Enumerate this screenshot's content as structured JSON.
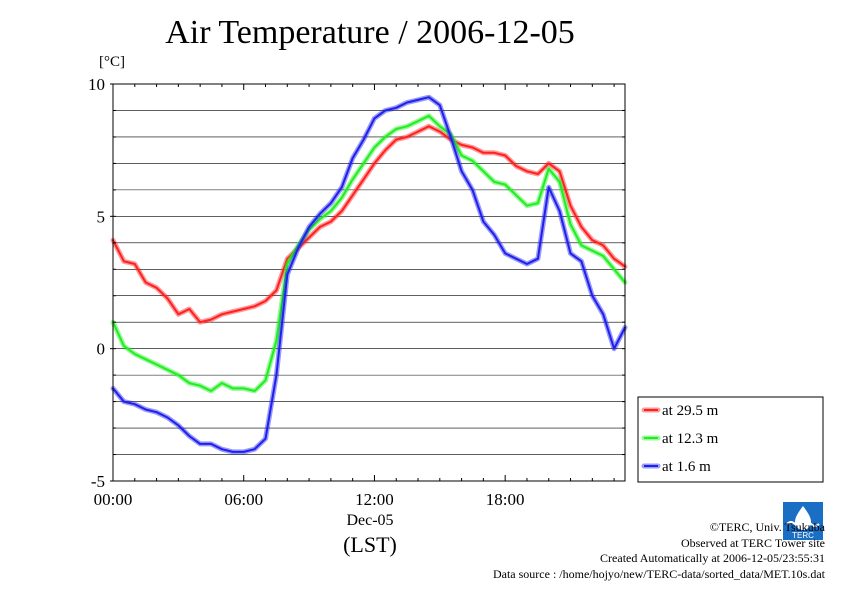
{
  "title": "Air Temperature / 2006-12-05",
  "footer": {
    "copyright": "©TERC, Univ. Tsukuba",
    "observed": "Observed at TERC Tower site",
    "created": "Created Automatically at 2006-12-05/23:55:31",
    "source": "Data source : /home/hojyo/new/TERC-data/sorted_data/MET.10s.dat"
  },
  "logo": {
    "text": "TERC",
    "color": "#1a6fc4"
  },
  "chart_data": {
    "type": "line",
    "title": "Air Temperature / 2006-12-05",
    "ylabel": "[°C]",
    "xlabel_date": "Dec-05",
    "xlabel_unit": "(LST)",
    "ylim": [
      -5,
      10
    ],
    "xlim": [
      0,
      23.5
    ],
    "yticks": [
      -5,
      0,
      5,
      10
    ],
    "xticks": [
      {
        "t": 0,
        "label": "00:00"
      },
      {
        "t": 6,
        "label": "06:00"
      },
      {
        "t": 12,
        "label": "12:00"
      },
      {
        "t": 18,
        "label": "18:00"
      }
    ],
    "grid": true,
    "legend_position": "right",
    "x_hours": [
      0,
      0.5,
      1,
      1.5,
      2,
      2.5,
      3,
      3.5,
      4,
      4.5,
      5,
      5.5,
      6,
      6.5,
      7,
      7.5,
      8,
      8.5,
      9,
      9.5,
      10,
      10.5,
      11,
      11.5,
      12,
      12.5,
      13,
      13.5,
      14,
      14.5,
      15,
      15.5,
      16,
      16.5,
      17,
      17.5,
      18,
      18.5,
      19,
      19.5,
      20,
      20.5,
      21,
      21.5,
      22,
      22.5,
      23,
      23.5
    ],
    "series": [
      {
        "name": "at 29.5 m",
        "color": "#ff2020",
        "values": [
          4.1,
          3.3,
          3.2,
          2.5,
          2.3,
          1.9,
          1.3,
          1.5,
          1.0,
          1.1,
          1.3,
          1.4,
          1.5,
          1.6,
          1.8,
          2.2,
          3.4,
          3.8,
          4.2,
          4.6,
          4.8,
          5.2,
          5.8,
          6.4,
          7.0,
          7.5,
          7.9,
          8.0,
          8.2,
          8.4,
          8.2,
          7.9,
          7.7,
          7.6,
          7.4,
          7.4,
          7.3,
          6.9,
          6.7,
          6.6,
          7.0,
          6.7,
          5.4,
          4.6,
          4.1,
          3.9,
          3.4,
          3.1
        ]
      },
      {
        "name": "at 12.3 m",
        "color": "#20ee20",
        "values": [
          1.0,
          0.1,
          -0.2,
          -0.4,
          -0.6,
          -0.8,
          -1.0,
          -1.3,
          -1.4,
          -1.6,
          -1.3,
          -1.5,
          -1.5,
          -1.6,
          -1.2,
          0.3,
          3.2,
          3.9,
          4.5,
          4.9,
          5.2,
          5.7,
          6.4,
          7.0,
          7.6,
          8.0,
          8.3,
          8.4,
          8.6,
          8.8,
          8.4,
          8.1,
          7.3,
          7.1,
          6.7,
          6.3,
          6.2,
          5.8,
          5.4,
          5.5,
          6.8,
          6.3,
          4.7,
          3.9,
          3.7,
          3.5,
          3.0,
          2.5
        ]
      },
      {
        "name": "at 1.6 m",
        "color": "#2020ee",
        "values": [
          -1.5,
          -2.0,
          -2.1,
          -2.3,
          -2.4,
          -2.6,
          -2.9,
          -3.3,
          -3.6,
          -3.6,
          -3.8,
          -3.9,
          -3.9,
          -3.8,
          -3.4,
          -1.0,
          2.8,
          3.8,
          4.6,
          5.1,
          5.5,
          6.1,
          7.2,
          7.9,
          8.7,
          9.0,
          9.1,
          9.3,
          9.4,
          9.5,
          9.2,
          8.0,
          6.7,
          6.0,
          4.8,
          4.3,
          3.6,
          3.4,
          3.2,
          3.4,
          6.1,
          5.2,
          3.6,
          3.3,
          2.0,
          1.3,
          0.0,
          0.8
        ]
      }
    ]
  }
}
